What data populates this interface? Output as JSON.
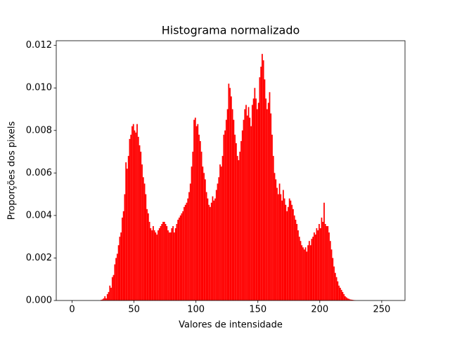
{
  "chart_data": {
    "type": "histogram",
    "title": "Histograma normalizado",
    "x_label": "Valores de intensidade",
    "y_label": "Proporções dos pixels",
    "color": "#ff0000",
    "bins": [
      0,
      1,
      2,
      3,
      4,
      5,
      6,
      7,
      8,
      9,
      10,
      11,
      12,
      13,
      14,
      15,
      16,
      17,
      18,
      19,
      20,
      21,
      22,
      23,
      24,
      25,
      26,
      27,
      28,
      29,
      30,
      31,
      32,
      33,
      34,
      35,
      36,
      37,
      38,
      39,
      40,
      41,
      42,
      43,
      44,
      45,
      46,
      47,
      48,
      49,
      50,
      51,
      52,
      53,
      54,
      55,
      56,
      57,
      58,
      59,
      60,
      61,
      62,
      63,
      64,
      65,
      66,
      67,
      68,
      69,
      70,
      71,
      72,
      73,
      74,
      75,
      76,
      77,
      78,
      79,
      80,
      81,
      82,
      83,
      84,
      85,
      86,
      87,
      88,
      89,
      90,
      91,
      92,
      93,
      94,
      95,
      96,
      97,
      98,
      99,
      100,
      101,
      102,
      103,
      104,
      105,
      106,
      107,
      108,
      109,
      110,
      111,
      112,
      113,
      114,
      115,
      116,
      117,
      118,
      119,
      120,
      121,
      122,
      123,
      124,
      125,
      126,
      127,
      128,
      129,
      130,
      131,
      132,
      133,
      134,
      135,
      136,
      137,
      138,
      139,
      140,
      141,
      142,
      143,
      144,
      145,
      146,
      147,
      148,
      149,
      150,
      151,
      152,
      153,
      154,
      155,
      156,
      157,
      158,
      159,
      160,
      161,
      162,
      163,
      164,
      165,
      166,
      167,
      168,
      169,
      170,
      171,
      172,
      173,
      174,
      175,
      176,
      177,
      178,
      179,
      180,
      181,
      182,
      183,
      184,
      185,
      186,
      187,
      188,
      189,
      190,
      191,
      192,
      193,
      194,
      195,
      196,
      197,
      198,
      199,
      200,
      201,
      202,
      203,
      204,
      205,
      206,
      207,
      208,
      209,
      210,
      211,
      212,
      213,
      214,
      215,
      216,
      217,
      218,
      219,
      220,
      221,
      222,
      223,
      224,
      225,
      226,
      227,
      228,
      229,
      230,
      231,
      232,
      233,
      234,
      235,
      236,
      237,
      238,
      239,
      240,
      241,
      242,
      243,
      244,
      245,
      246,
      247,
      248,
      249,
      250,
      251,
      252,
      253,
      254,
      255,
      256
    ],
    "values": [
      0,
      0,
      0,
      0,
      0,
      0,
      0,
      0,
      0,
      0,
      0,
      0,
      0,
      0,
      0,
      0,
      0,
      0,
      0,
      0,
      0,
      0,
      0,
      3e-05,
      5e-05,
      0.0001,
      0.0002,
      0.0001,
      0.0003,
      0.0004,
      0.0007,
      0.0006,
      0.0011,
      0.0012,
      0.0017,
      0.002,
      0.0022,
      0.0026,
      0.003,
      0.0032,
      0.0039,
      0.0042,
      0.005,
      0.0065,
      0.0062,
      0.0068,
      0.0076,
      0.0078,
      0.0082,
      0.0083,
      0.008,
      0.0079,
      0.0083,
      0.0077,
      0.0073,
      0.007,
      0.0064,
      0.0058,
      0.0055,
      0.005,
      0.0043,
      0.0041,
      0.0037,
      0.0034,
      0.0033,
      0.0035,
      0.0033,
      0.0032,
      0.0031,
      0.0033,
      0.0034,
      0.0035,
      0.0036,
      0.0037,
      0.0037,
      0.0036,
      0.0035,
      0.0033,
      0.0032,
      0.0032,
      0.0034,
      0.0035,
      0.0032,
      0.0034,
      0.0036,
      0.0038,
      0.0039,
      0.004,
      0.0041,
      0.0042,
      0.0044,
      0.0045,
      0.0046,
      0.0048,
      0.0051,
      0.0055,
      0.0063,
      0.007,
      0.0085,
      0.0086,
      0.0082,
      0.0083,
      0.0078,
      0.0075,
      0.007,
      0.0063,
      0.006,
      0.0057,
      0.0051,
      0.0048,
      0.0045,
      0.0044,
      0.0046,
      0.0049,
      0.0047,
      0.0048,
      0.0052,
      0.0055,
      0.0058,
      0.0064,
      0.0063,
      0.0068,
      0.0078,
      0.008,
      0.0085,
      0.009,
      0.0102,
      0.01,
      0.0096,
      0.009,
      0.0085,
      0.0078,
      0.0074,
      0.0068,
      0.0066,
      0.007,
      0.0075,
      0.008,
      0.0085,
      0.009,
      0.0092,
      0.0087,
      0.0091,
      0.0086,
      0.0082,
      0.0092,
      0.0095,
      0.01,
      0.0095,
      0.009,
      0.0093,
      0.0105,
      0.011,
      0.0116,
      0.0113,
      0.0104,
      0.0095,
      0.009,
      0.0093,
      0.0098,
      0.0088,
      0.0078,
      0.0068,
      0.006,
      0.0057,
      0.0053,
      0.005,
      0.0055,
      0.005,
      0.0047,
      0.0052,
      0.0048,
      0.0045,
      0.0042,
      0.0044,
      0.0048,
      0.0047,
      0.0045,
      0.0043,
      0.004,
      0.0038,
      0.0036,
      0.0033,
      0.003,
      0.0028,
      0.0026,
      0.0025,
      0.0024,
      0.0025,
      0.0023,
      0.0026,
      0.0028,
      0.0026,
      0.0029,
      0.003,
      0.0032,
      0.0031,
      0.0034,
      0.0033,
      0.0036,
      0.0034,
      0.0039,
      0.0037,
      0.0046,
      0.0036,
      0.0035,
      0.0035,
      0.0032,
      0.0028,
      0.0024,
      0.002,
      0.0016,
      0.0013,
      0.0011,
      0.0009,
      0.0007,
      0.0006,
      0.0005,
      0.0004,
      0.0003,
      0.0002,
      0.00015,
      0.0001,
      8e-05,
      5e-05,
      4e-05,
      3e-05,
      2e-05,
      1e-05,
      0,
      0,
      0,
      0,
      0,
      0,
      0,
      0,
      0,
      0,
      0,
      0,
      0,
      0,
      0,
      0,
      0,
      0,
      0,
      0,
      0,
      0,
      0,
      0,
      0,
      0,
      0
    ],
    "xlim": [
      -12.8,
      268.8
    ],
    "xticks": [
      0,
      50,
      100,
      150,
      200,
      250
    ],
    "ylim": [
      0,
      0.01222
    ],
    "yticks": [
      {
        "value": 0,
        "label": "0.000"
      },
      {
        "value": 0.002,
        "label": "0.002"
      },
      {
        "value": 0.004,
        "label": "0.004"
      },
      {
        "value": 0.006,
        "label": "0.006"
      },
      {
        "value": 0.008,
        "label": "0.008"
      },
      {
        "value": 0.01,
        "label": "0.010"
      },
      {
        "value": 0.012,
        "label": "0.012"
      }
    ]
  }
}
